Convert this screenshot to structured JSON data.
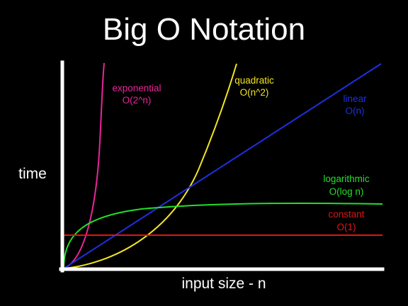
{
  "chart_data": {
    "type": "line",
    "title": "Big O Notation",
    "xlabel": "input size - n",
    "ylabel": "time",
    "grid": false,
    "legend": "none",
    "axis_color": "#ffffff",
    "background": "#000000",
    "series": [
      {
        "key": "exponential",
        "label_line1": "exponential",
        "label_line2": "O(2^n)",
        "color": "#e8259a"
      },
      {
        "key": "quadratic",
        "label_line1": "quadratic",
        "label_line2": "O(n^2)",
        "color": "#f2e421"
      },
      {
        "key": "linear",
        "label_line1": "linear",
        "label_line2": "O(n)",
        "color": "#1f2fe0"
      },
      {
        "key": "logarithmic",
        "label_line1": "logarithmic",
        "label_line2": "O(log n)",
        "color": "#22e02a"
      },
      {
        "key": "constant",
        "label_line1": "constant",
        "label_line2": "O(1)",
        "color": "#e01515"
      }
    ]
  }
}
